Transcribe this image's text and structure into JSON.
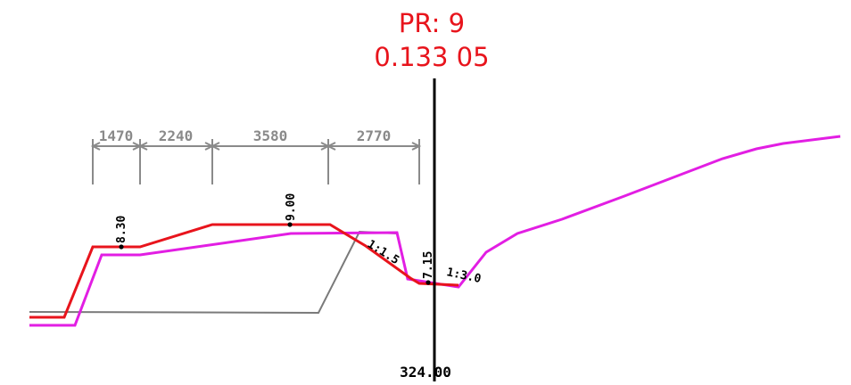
{
  "header": {
    "profile_label": "PR: 9",
    "chainage": "0.133 05"
  },
  "dimensions": [
    "1470",
    "2240",
    "3580",
    "2770"
  ],
  "elevation_labels": {
    "left_edge": "8.30",
    "crest": "9.00",
    "ditch": "7.15"
  },
  "slope_labels": {
    "left_slope": "1:1.5",
    "right_slope": "1:3.0"
  },
  "datum_label": "324.00",
  "colors": {
    "design_line": "#e8141c",
    "existing_terrain": "#e21ee3",
    "original_ground": "#7a7a7a",
    "centerline": "#000000",
    "dimension": "#8a8a8a",
    "title": "#e8141c"
  }
}
